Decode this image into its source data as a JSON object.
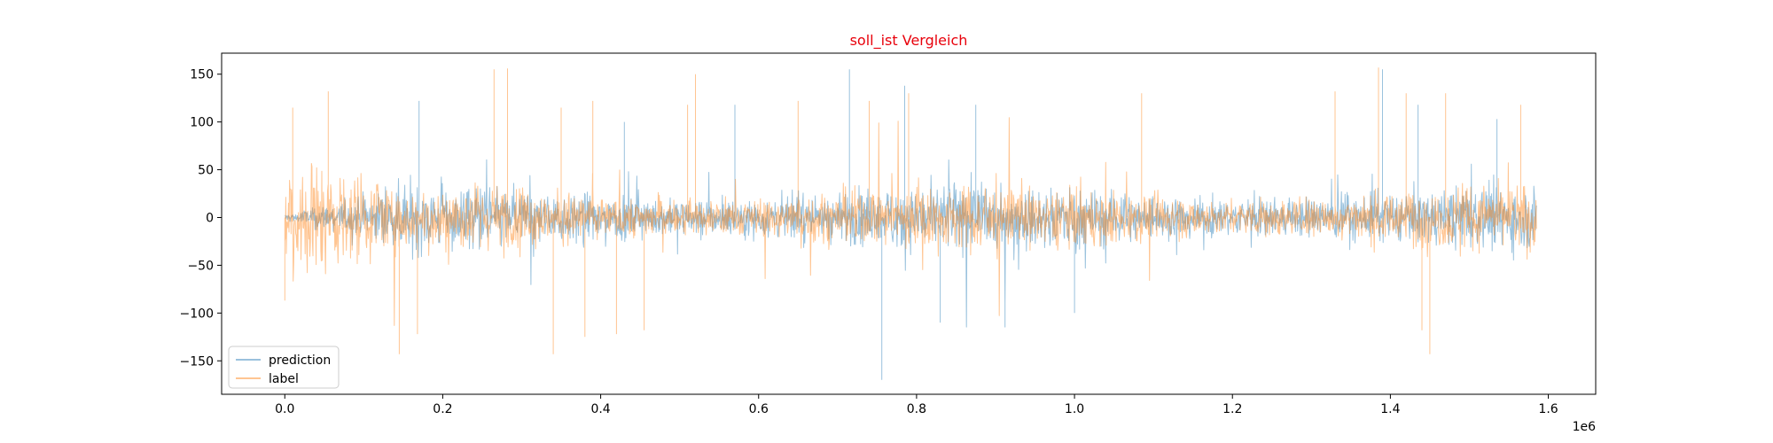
{
  "chart_data": {
    "type": "line",
    "title": "soll_ist Vergleich",
    "title_color": "#e8000b",
    "xlabel": "",
    "ylabel": "",
    "x_offset_label": "1e6",
    "xlim": [
      -0.08,
      1.66
    ],
    "ylim": [
      -185,
      172
    ],
    "x_ticks": [
      0.0,
      0.2,
      0.4,
      0.6,
      0.8,
      1.0,
      1.2,
      1.4,
      1.6
    ],
    "x_tick_labels": [
      "0.0",
      "0.2",
      "0.4",
      "0.6",
      "0.8",
      "1.0",
      "1.2",
      "1.4",
      "1.6"
    ],
    "y_ticks": [
      -150,
      -100,
      -50,
      0,
      50,
      100,
      150
    ],
    "y_tick_labels": [
      "−150",
      "−100",
      "−50",
      "0",
      "50",
      "100",
      "150"
    ],
    "grid": false,
    "legend_position": "lower-left",
    "x_range": [
      0.0,
      1.585
    ],
    "series": [
      {
        "name": "prediction",
        "color": "#1f77b4",
        "opacity": 0.45,
        "peaks_high": [
          [
            0.17,
            122
          ],
          [
            0.43,
            100
          ],
          [
            0.57,
            118
          ],
          [
            0.715,
            155
          ],
          [
            0.785,
            138
          ],
          [
            0.875,
            118
          ],
          [
            1.39,
            155
          ],
          [
            1.435,
            118
          ],
          [
            1.535,
            103
          ]
        ],
        "peaks_low": [
          [
            0.756,
            -170
          ],
          [
            0.83,
            -110
          ],
          [
            0.912,
            -115
          ],
          [
            1.0,
            -100
          ]
        ]
      },
      {
        "name": "label",
        "color": "#ff7f0e",
        "opacity": 0.45,
        "peaks_high": [
          [
            0.01,
            115
          ],
          [
            0.055,
            132
          ],
          [
            0.265,
            155
          ],
          [
            0.282,
            156
          ],
          [
            0.35,
            115
          ],
          [
            0.39,
            122
          ],
          [
            0.51,
            118
          ],
          [
            0.52,
            150
          ],
          [
            0.65,
            122
          ],
          [
            0.74,
            122
          ],
          [
            0.79,
            130
          ],
          [
            1.085,
            130
          ],
          [
            1.33,
            132
          ],
          [
            1.385,
            157
          ],
          [
            1.42,
            130
          ],
          [
            1.47,
            130
          ],
          [
            1.565,
            118
          ]
        ],
        "peaks_low": [
          [
            0.0,
            -87
          ],
          [
            0.145,
            -143
          ],
          [
            0.168,
            -122
          ],
          [
            0.34,
            -143
          ],
          [
            0.38,
            -125
          ],
          [
            0.42,
            -122
          ],
          [
            0.455,
            -118
          ],
          [
            1.44,
            -118
          ],
          [
            1.45,
            -143
          ]
        ]
      }
    ]
  }
}
